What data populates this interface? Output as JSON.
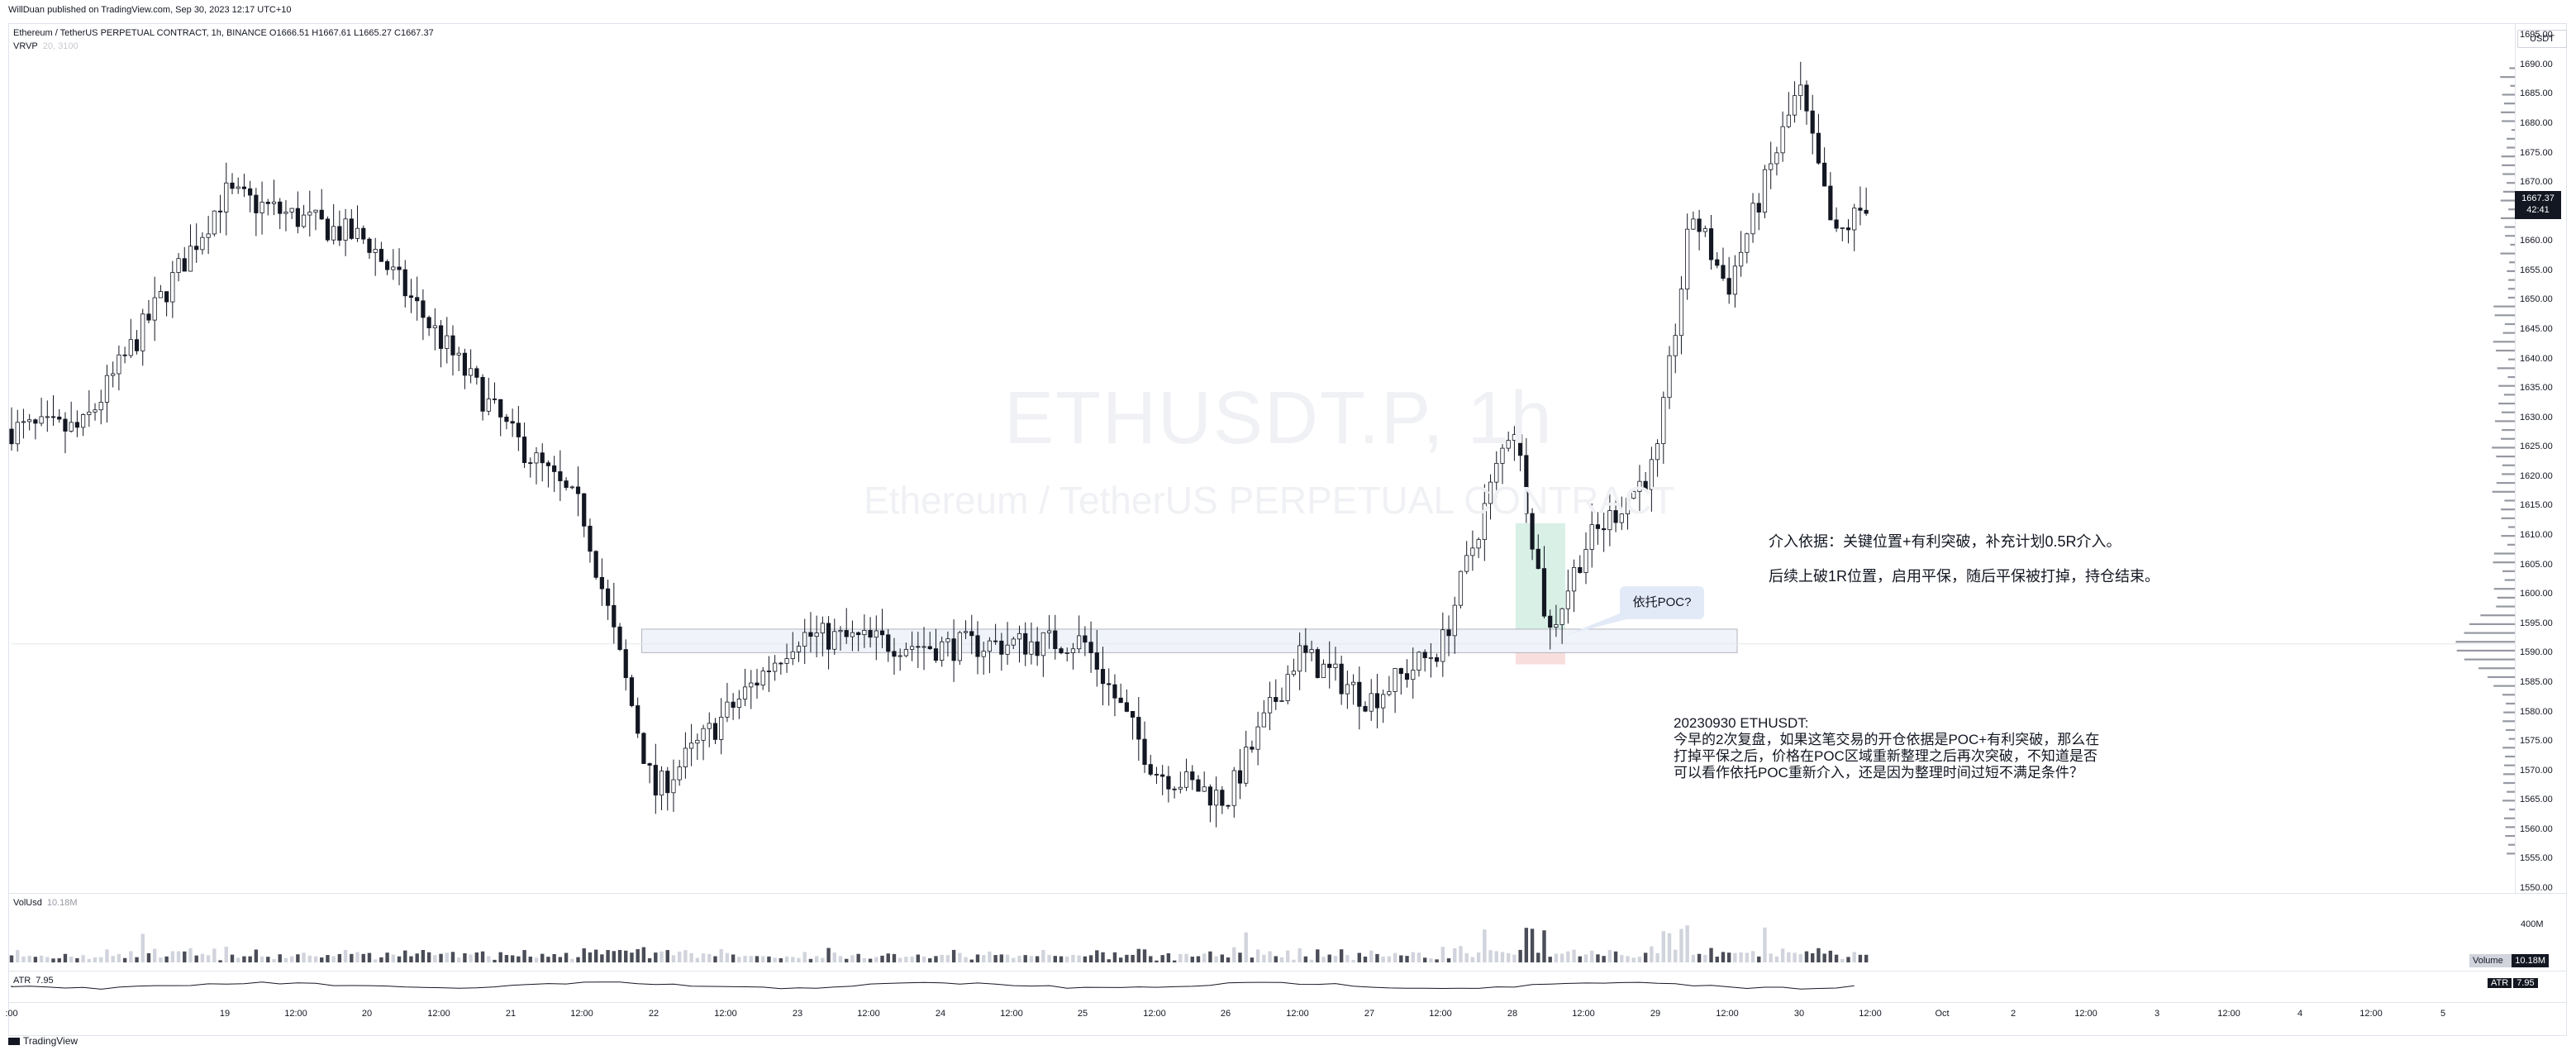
{
  "header": {
    "publisher": "WillDuan published on TradingView.com, Sep 30, 2023 12:17 UTC+10",
    "symbol_line": "Ethereum / TetherUS PERPETUAL CONTRACT, 1h, BINANCE  O1666.51  H1667.61  L1665.27  C1667.37",
    "indicator_vrvp": "VRVP",
    "indicator_vrvp_value": "20, 3100"
  },
  "watermark": {
    "symbol": "ETHUSDT.P, 1h",
    "description": "Ethereum / TetherUS PERPETUAL CONTRACT"
  },
  "price_axis": {
    "currency": "USDT",
    "labels": [
      "1695.00",
      "1690.00",
      "1685.00",
      "1680.00",
      "1675.00",
      "1670.00",
      "1665.00",
      "1660.00",
      "1655.00",
      "1650.00",
      "1645.00",
      "1640.00",
      "1635.00",
      "1630.00",
      "1625.00",
      "1620.00",
      "1615.00",
      "1610.00",
      "1605.00",
      "1600.00",
      "1595.00",
      "1590.00",
      "1585.00",
      "1580.00",
      "1575.00",
      "1570.00",
      "1565.00",
      "1560.00",
      "1555.00",
      "1550.00"
    ],
    "last_price": "1667.37",
    "countdown": "42:41"
  },
  "volume_pane": {
    "label": "VolUsd",
    "value": "10.18M",
    "axis_label": "400M",
    "tag_key": "Volume",
    "tag_value": "10.18M"
  },
  "atr_pane": {
    "label": "ATR",
    "value": "7.95",
    "tag_key": "ATR",
    "tag_value": "7.95"
  },
  "time_axis": [
    ":00",
    "19",
    "12:00",
    "20",
    "12:00",
    "21",
    "12:00",
    "22",
    "12:00",
    "23",
    "12:00",
    "24",
    "12:00",
    "25",
    "12:00",
    "26",
    "12:00",
    "27",
    "12:00",
    "28",
    "12:00",
    "29",
    "12:00",
    "30",
    "12:00",
    "Oct",
    "2",
    "12:00",
    "3",
    "12:00",
    "4",
    "12:00",
    "5"
  ],
  "annotations": {
    "basis": "介入依据：关键位置+有利突破，补充计划0.5R介入。",
    "follow_up": "后续上破1R位置，启用平保，随后平保被打掉，持仓结束。",
    "review": [
      "20230930 ETHUSDT:",
      "今早的2次复盘，如果这笔交易的开仓依据是POC+有利突破，那么在",
      "打掉平保之后，价格在POC区域重新整理之后再次突破，不知道是否",
      "可以看作依托POC重新介入，还是因为整理时间过短不满足条件？"
    ],
    "callout": "依托POC?"
  },
  "branding": {
    "logo_text": "TradingView"
  },
  "colors": {
    "candle_up": "#ffffff",
    "candle_down": "#131722",
    "wick": "#131722",
    "volume_up": "#d1d4dc",
    "volume_down": "#4a4d57",
    "poc_box": "#f0f3fa",
    "vrvp": "#9598a1",
    "position_profit": "#d8f0e6",
    "position_loss": "#f9dede"
  },
  "chart_data": {
    "type": "candlestick",
    "title": "ETHUSDT.P, 1h",
    "ylim": [
      1550,
      1697
    ],
    "key_points": [
      {
        "x": "Sep 18",
        "price": 1628
      },
      {
        "x": "Sep 19",
        "price": 1668
      },
      {
        "x": "Sep 20",
        "price": 1660
      },
      {
        "x": "Sep 21",
        "price": 1627
      },
      {
        "x": "Sep 21 12:00",
        "price": 1614
      },
      {
        "x": "Sep 22",
        "price": 1566
      },
      {
        "x": "Sep 23",
        "price": 1593
      },
      {
        "x": "Sep 24",
        "price": 1591
      },
      {
        "x": "Sep 25",
        "price": 1592
      },
      {
        "x": "Sep 25 12:00",
        "price": 1570
      },
      {
        "x": "Sep 26",
        "price": 1565
      },
      {
        "x": "Sep 26 12:00",
        "price": 1590
      },
      {
        "x": "Sep 27",
        "price": 1582
      },
      {
        "x": "Sep 27 12:00",
        "price": 1591
      },
      {
        "x": "Sep 28",
        "price": 1630
      },
      {
        "x": "Sep 28 06:00",
        "price": 1593
      },
      {
        "x": "Sep 28 12:00",
        "price": 1608
      },
      {
        "x": "Sep 29",
        "price": 1622
      },
      {
        "x": "Sep 29 06:00",
        "price": 1665
      },
      {
        "x": "Sep 29 12:00",
        "price": 1652
      },
      {
        "x": "Sep 30",
        "price": 1686
      },
      {
        "x": "Sep 30 06:00",
        "price": 1660
      },
      {
        "x": "Sep 30 12:00",
        "price": 1667.37
      }
    ],
    "poc_zone": [
      1590,
      1594
    ],
    "last": 1667.37
  }
}
